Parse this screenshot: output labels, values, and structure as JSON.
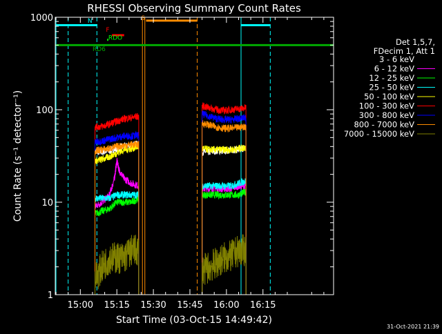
{
  "footer_timestamp": "31-Oct-2021 21:39",
  "chart_data": {
    "type": "line",
    "title": "RHESSI Observing Summary Count Rates",
    "xlabel": "Start Time (03-Oct-15 14:49:42)",
    "ylabel": "Count Rate (s⁻¹ detector⁻¹)",
    "y_scale": "log",
    "ylim": [
      1,
      1000
    ],
    "x_unit": "minutes of day (UT)",
    "xlim": [
      889.7,
      1004
    ],
    "x_ticks": [
      {
        "value": 900,
        "label": "15:00"
      },
      {
        "value": 915,
        "label": "15:15"
      },
      {
        "value": 930,
        "label": "15:30"
      },
      {
        "value": 945,
        "label": "15:45"
      },
      {
        "value": 960,
        "label": "16:00"
      },
      {
        "value": 975,
        "label": "16:15"
      }
    ],
    "y_ticks": [
      {
        "value": 1,
        "label": "1"
      },
      {
        "value": 10,
        "label": "10"
      },
      {
        "value": 100,
        "label": "100"
      },
      {
        "value": 1000,
        "label": "1000"
      }
    ],
    "grid": false,
    "legend_header": [
      "Det 1,5,7,",
      "FDecim 1, Att 1"
    ],
    "legend_position": "right",
    "data_intervals": [
      [
        906,
        924
      ],
      [
        950,
        968
      ]
    ],
    "vlines": [
      {
        "x": 890,
        "color": "#00ffff",
        "style": "solid"
      },
      {
        "x": 895,
        "color": "#00ffff",
        "style": "dashed"
      },
      {
        "x": 906.8,
        "color": "#00ffff",
        "style": "dashed"
      },
      {
        "x": 925.5,
        "color": "#ff8c00",
        "style": "solid"
      },
      {
        "x": 926.5,
        "color": "#ff8c00",
        "style": "solid"
      },
      {
        "x": 948,
        "color": "#ff8c00",
        "style": "dashed"
      },
      {
        "x": 966,
        "color": "#00ffff",
        "style": "solid"
      },
      {
        "x": 978,
        "color": "#00ffff",
        "style": "dashed"
      }
    ],
    "flag_bars": [
      {
        "label": "N",
        "color": "#00ffff",
        "x0": 890,
        "x1": 907,
        "y": 820,
        "label_x": 903,
        "label_y": 870
      },
      {
        "label": "N",
        "color": "#00ffff",
        "x0": 966,
        "x1": 978,
        "y": 820,
        "label_x": null,
        "label_y": null
      },
      {
        "label": "S",
        "color": "#ff8c00",
        "x0": 927,
        "x1": 948,
        "y": 920,
        "label_x": 925,
        "label_y": 930
      },
      {
        "label": "F",
        "color": "#ff0000",
        "x0": 913,
        "x1": 918,
        "y": 640,
        "label_x": 910.5,
        "label_y": 700
      },
      {
        "label": "RDO",
        "color": "#00ff00",
        "x0": 911,
        "x1": 911.5,
        "y": 570,
        "label_x": 911.5,
        "label_y": 570
      },
      {
        "label": "RD6",
        "color": "#00aa00",
        "x0": 890,
        "x1": 1004,
        "y": 500,
        "label_x": 905,
        "label_y": 430
      }
    ],
    "series": [
      {
        "name": "3 - 6 keV",
        "color": "#ffffff",
        "legend_color": "#000000",
        "values": [
          [
            906,
            35
          ],
          [
            909,
            35
          ],
          [
            912,
            36
          ],
          [
            915,
            38
          ],
          [
            918,
            40
          ],
          [
            921,
            41
          ],
          [
            924,
            43
          ],
          [
            950,
            35
          ],
          [
            953,
            35
          ],
          [
            956,
            36
          ],
          [
            959,
            36
          ],
          [
            962,
            37
          ],
          [
            965,
            37
          ],
          [
            968,
            39
          ]
        ]
      },
      {
        "name": "6 - 12 keV",
        "color": "#ff00ff",
        "values": [
          [
            906,
            9
          ],
          [
            909,
            10
          ],
          [
            912,
            12
          ],
          [
            914,
            18
          ],
          [
            915,
            28
          ],
          [
            916,
            22
          ],
          [
            918,
            18
          ],
          [
            921,
            16
          ],
          [
            924,
            15
          ],
          [
            950,
            14
          ],
          [
            953,
            14
          ],
          [
            956,
            14
          ],
          [
            959,
            14
          ],
          [
            962,
            14
          ],
          [
            965,
            15
          ],
          [
            968,
            15
          ]
        ]
      },
      {
        "name": "12 - 25 keV",
        "color": "#00ff00",
        "values": [
          [
            906,
            7.5
          ],
          [
            909,
            8
          ],
          [
            912,
            8.5
          ],
          [
            915,
            10
          ],
          [
            918,
            10
          ],
          [
            921,
            10
          ],
          [
            924,
            11
          ],
          [
            950,
            12
          ],
          [
            953,
            12
          ],
          [
            956,
            12
          ],
          [
            959,
            12
          ],
          [
            962,
            12
          ],
          [
            965,
            12
          ],
          [
            968,
            13
          ]
        ]
      },
      {
        "name": "25 - 50 keV",
        "color": "#00ffff",
        "values": [
          [
            906,
            11
          ],
          [
            909,
            11
          ],
          [
            912,
            11
          ],
          [
            915,
            12
          ],
          [
            918,
            12
          ],
          [
            921,
            12
          ],
          [
            924,
            12
          ],
          [
            950,
            15
          ],
          [
            953,
            15
          ],
          [
            956,
            15
          ],
          [
            959,
            15
          ],
          [
            962,
            15
          ],
          [
            965,
            16
          ],
          [
            968,
            17
          ]
        ]
      },
      {
        "name": "50 - 100 keV",
        "color": "#ffff00",
        "values": [
          [
            906,
            28
          ],
          [
            909,
            29
          ],
          [
            912,
            31
          ],
          [
            915,
            34
          ],
          [
            918,
            37
          ],
          [
            921,
            38
          ],
          [
            924,
            40
          ],
          [
            950,
            38
          ],
          [
            953,
            37
          ],
          [
            956,
            37
          ],
          [
            959,
            37
          ],
          [
            962,
            37
          ],
          [
            965,
            38
          ],
          [
            968,
            39
          ]
        ]
      },
      {
        "name": "100 - 300 keV",
        "color": "#ff0000",
        "values": [
          [
            906,
            65
          ],
          [
            909,
            66
          ],
          [
            912,
            70
          ],
          [
            915,
            75
          ],
          [
            918,
            80
          ],
          [
            921,
            82
          ],
          [
            924,
            85
          ],
          [
            950,
            110
          ],
          [
            953,
            105
          ],
          [
            956,
            100
          ],
          [
            959,
            98
          ],
          [
            962,
            100
          ],
          [
            965,
            102
          ],
          [
            968,
            105
          ]
        ]
      },
      {
        "name": "300 - 800 keV",
        "color": "#0000ff",
        "values": [
          [
            906,
            45
          ],
          [
            909,
            46
          ],
          [
            912,
            48
          ],
          [
            915,
            50
          ],
          [
            918,
            52
          ],
          [
            921,
            52
          ],
          [
            924,
            53
          ],
          [
            950,
            90
          ],
          [
            953,
            85
          ],
          [
            956,
            80
          ],
          [
            959,
            78
          ],
          [
            962,
            78
          ],
          [
            965,
            80
          ],
          [
            968,
            82
          ]
        ]
      },
      {
        "name": "800 - 7000 keV",
        "color": "#ff8c00",
        "values": [
          [
            906,
            36
          ],
          [
            909,
            37
          ],
          [
            912,
            38
          ],
          [
            915,
            40
          ],
          [
            918,
            41
          ],
          [
            921,
            42
          ],
          [
            924,
            42
          ],
          [
            950,
            72
          ],
          [
            953,
            68
          ],
          [
            956,
            65
          ],
          [
            959,
            63
          ],
          [
            962,
            63
          ],
          [
            965,
            64
          ],
          [
            968,
            66
          ]
        ]
      },
      {
        "name": "7000 - 15000 keV",
        "color": "#808000",
        "values": [
          [
            906,
            1.5
          ],
          [
            909,
            2
          ],
          [
            912,
            2.5
          ],
          [
            915,
            2.5
          ],
          [
            918,
            2.5
          ],
          [
            921,
            3
          ],
          [
            924,
            3
          ],
          [
            950,
            1.8
          ],
          [
            953,
            2
          ],
          [
            956,
            2.2
          ],
          [
            959,
            2.5
          ],
          [
            962,
            2.6
          ],
          [
            965,
            3
          ],
          [
            968,
            3
          ]
        ]
      }
    ]
  }
}
